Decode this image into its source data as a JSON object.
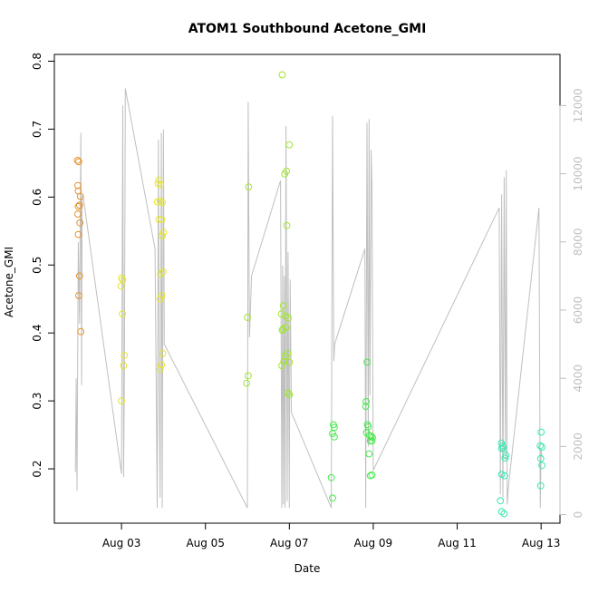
{
  "chart_data": {
    "type": "scatter",
    "title": "ATOM1 Southbound Acetone_GMI",
    "xlabel": "Date",
    "ylabel": "Acetone_GMI",
    "right_axis_label": "",
    "x_ticks": [
      "Aug 03",
      "Aug 05",
      "Aug 07",
      "Aug 09",
      "Aug 11",
      "Aug 13"
    ],
    "x_tick_values": [
      3,
      5,
      7,
      9,
      11,
      13
    ],
    "xlim": [
      1.4,
      13.45
    ],
    "y_ticks": [
      "0.2",
      "0.3",
      "0.4",
      "0.5",
      "0.6",
      "0.7",
      "0.8"
    ],
    "y_tick_values": [
      0.2,
      0.3,
      0.4,
      0.5,
      0.6,
      0.7,
      0.8
    ],
    "ylim": [
      0.12,
      0.81
    ],
    "y2_ticks": [
      "0",
      "2000",
      "4000",
      "6000",
      "8000",
      "10000",
      "12000"
    ],
    "y2_tick_values": [
      0,
      2000,
      4000,
      6000,
      8000,
      10000,
      12000
    ],
    "y2lim": [
      -250,
      13500
    ],
    "grid": false,
    "legend": "none",
    "colors": {
      "line": "#bfbfbf",
      "axis": "#000000",
      "right_axis": "#bfbfbf"
    },
    "series": [
      {
        "color": "#e8922a",
        "points": [
          [
            1.95,
            0.654
          ],
          [
            1.98,
            0.652
          ],
          [
            1.96,
            0.617
          ],
          [
            1.97,
            0.609
          ],
          [
            2.02,
            0.601
          ],
          [
            2.0,
            0.588
          ],
          [
            1.97,
            0.586
          ],
          [
            1.96,
            0.575
          ],
          [
            2.01,
            0.562
          ],
          [
            1.97,
            0.545
          ],
          [
            2.0,
            0.484
          ],
          [
            1.98,
            0.455
          ],
          [
            2.03,
            0.402
          ]
        ]
      },
      {
        "color": "#e5e52f",
        "points": [
          [
            3.0,
            0.481
          ],
          [
            3.03,
            0.478
          ],
          [
            2.99,
            0.469
          ],
          [
            3.02,
            0.428
          ],
          [
            3.07,
            0.367
          ],
          [
            3.05,
            0.352
          ],
          [
            3.0,
            0.3
          ],
          [
            3.87,
            0.62
          ],
          [
            3.89,
            0.625
          ],
          [
            3.93,
            0.618
          ],
          [
            3.85,
            0.593
          ],
          [
            3.92,
            0.594
          ],
          [
            3.97,
            0.592
          ],
          [
            3.89,
            0.567
          ],
          [
            3.96,
            0.567
          ],
          [
            4.0,
            0.548
          ],
          [
            3.97,
            0.543
          ],
          [
            3.99,
            0.49
          ],
          [
            3.93,
            0.487
          ],
          [
            3.96,
            0.455
          ],
          [
            3.92,
            0.45
          ],
          [
            3.98,
            0.37
          ],
          [
            3.95,
            0.353
          ],
          [
            3.92,
            0.347
          ]
        ]
      },
      {
        "color": "#9fe52f",
        "points": [
          [
            6.03,
            0.615
          ],
          [
            6.0,
            0.423
          ],
          [
            6.02,
            0.337
          ],
          [
            5.98,
            0.326
          ],
          [
            6.83,
            0.78
          ],
          [
            6.89,
            0.634
          ],
          [
            6.93,
            0.638
          ],
          [
            7.0,
            0.677
          ],
          [
            6.94,
            0.558
          ],
          [
            6.86,
            0.44
          ],
          [
            6.81,
            0.428
          ],
          [
            6.91,
            0.425
          ],
          [
            6.97,
            0.422
          ],
          [
            6.92,
            0.408
          ],
          [
            6.85,
            0.406
          ],
          [
            6.83,
            0.404
          ],
          [
            6.96,
            0.37
          ],
          [
            6.9,
            0.366
          ],
          [
            6.87,
            0.358
          ],
          [
            7.0,
            0.357
          ],
          [
            6.82,
            0.352
          ],
          [
            6.97,
            0.312
          ],
          [
            7.0,
            0.309
          ]
        ]
      },
      {
        "color": "#44e84a",
        "points": [
          [
            8.05,
            0.265
          ],
          [
            8.07,
            0.261
          ],
          [
            8.03,
            0.252
          ],
          [
            8.07,
            0.247
          ],
          [
            8.0,
            0.187
          ],
          [
            8.03,
            0.157
          ],
          [
            8.85,
            0.357
          ],
          [
            8.83,
            0.299
          ],
          [
            8.82,
            0.292
          ],
          [
            8.86,
            0.265
          ],
          [
            8.88,
            0.262
          ],
          [
            8.84,
            0.253
          ],
          [
            8.91,
            0.249
          ],
          [
            8.95,
            0.248
          ],
          [
            8.98,
            0.246
          ],
          [
            8.93,
            0.241
          ],
          [
            8.97,
            0.241
          ],
          [
            8.9,
            0.222
          ],
          [
            8.93,
            0.19
          ],
          [
            8.97,
            0.191
          ]
        ]
      },
      {
        "color": "#35e8b1",
        "points": [
          [
            12.05,
            0.238
          ],
          [
            12.08,
            0.234
          ],
          [
            12.1,
            0.231
          ],
          [
            12.06,
            0.23
          ],
          [
            12.16,
            0.22
          ],
          [
            12.14,
            0.216
          ],
          [
            12.03,
            0.153
          ],
          [
            12.06,
            0.192
          ],
          [
            12.13,
            0.19
          ],
          [
            12.06,
            0.137
          ],
          [
            12.12,
            0.134
          ],
          [
            13.0,
            0.254
          ],
          [
            12.98,
            0.234
          ],
          [
            13.02,
            0.232
          ],
          [
            12.99,
            0.215
          ],
          [
            13.02,
            0.205
          ],
          [
            12.99,
            0.175
          ]
        ]
      }
    ],
    "line_series": {
      "axis": "right",
      "points": [
        [
          1.9,
          1250
        ],
        [
          1.92,
          4000
        ],
        [
          1.94,
          700
        ],
        [
          1.97,
          8000
        ],
        [
          2.0,
          5600
        ],
        [
          2.03,
          11200
        ],
        [
          2.05,
          3800
        ],
        [
          2.06,
          9200
        ],
        [
          2.08,
          9400
        ],
        [
          3.0,
          1200
        ],
        [
          3.03,
          12000
        ],
        [
          3.05,
          1100
        ],
        [
          3.07,
          4200
        ],
        [
          3.09,
          12500
        ],
        [
          3.8,
          7800
        ],
        [
          3.85,
          200
        ],
        [
          3.88,
          11000
        ],
        [
          3.9,
          3500
        ],
        [
          3.92,
          500
        ],
        [
          3.95,
          11200
        ],
        [
          3.97,
          200
        ],
        [
          4.0,
          11300
        ],
        [
          4.02,
          5000
        ],
        [
          6.0,
          200
        ],
        [
          6.02,
          12100
        ],
        [
          6.05,
          5200
        ],
        [
          6.1,
          7000
        ],
        [
          6.79,
          9800
        ],
        [
          6.82,
          200
        ],
        [
          6.84,
          7300
        ],
        [
          6.86,
          300
        ],
        [
          6.88,
          7000
        ],
        [
          6.9,
          200
        ],
        [
          6.92,
          11400
        ],
        [
          6.95,
          400
        ],
        [
          6.97,
          7700
        ],
        [
          7.0,
          200
        ],
        [
          7.0,
          1200
        ],
        [
          7.02,
          6900
        ],
        [
          7.05,
          3000
        ],
        [
          8.0,
          200
        ],
        [
          8.03,
          11700
        ],
        [
          8.06,
          4500
        ],
        [
          8.08,
          5000
        ],
        [
          8.8,
          7800
        ],
        [
          8.82,
          200
        ],
        [
          8.85,
          11500
        ],
        [
          8.88,
          2000
        ],
        [
          8.9,
          11600
        ],
        [
          8.92,
          3500
        ],
        [
          8.95,
          10700
        ],
        [
          8.97,
          9500
        ],
        [
          9.0,
          1300
        ],
        [
          12.0,
          9000
        ],
        [
          12.03,
          600
        ],
        [
          12.06,
          9400
        ],
        [
          12.09,
          500
        ],
        [
          12.12,
          9900
        ],
        [
          12.15,
          1600
        ],
        [
          12.17,
          10100
        ],
        [
          12.19,
          300
        ],
        [
          12.22,
          800
        ],
        [
          12.95,
          9000
        ],
        [
          12.98,
          200
        ],
        [
          13.0,
          1900
        ],
        [
          13.02,
          1700
        ]
      ]
    }
  }
}
